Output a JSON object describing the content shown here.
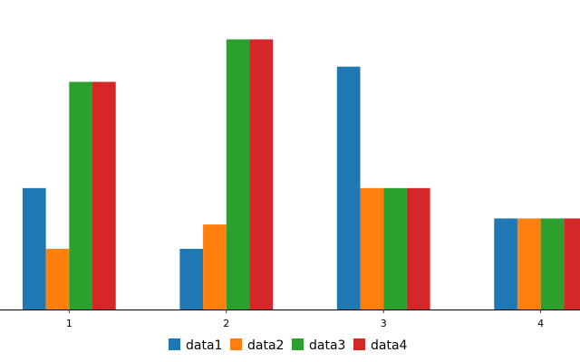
{
  "chart_data": {
    "type": "bar",
    "categories": [
      "1",
      "2",
      "3",
      "4"
    ],
    "series": [
      {
        "name": "data1",
        "color": "#1f77b4",
        "values": [
          4,
          2,
          8,
          3
        ]
      },
      {
        "name": "data2",
        "color": "#ff7f0e",
        "values": [
          2,
          2.8,
          4,
          3
        ]
      },
      {
        "name": "data3",
        "color": "#2ca02c",
        "values": [
          7.5,
          8.9,
          4,
          3
        ]
      },
      {
        "name": "data4",
        "color": "#d62728",
        "values": [
          7.5,
          8.9,
          4,
          3
        ]
      }
    ],
    "ylim": [
      0,
      9.6
    ],
    "xlim": [
      0.56,
      4.25
    ],
    "grid": false,
    "legend_position": "bottom-center",
    "title": "",
    "xlabel": "",
    "ylabel": ""
  }
}
